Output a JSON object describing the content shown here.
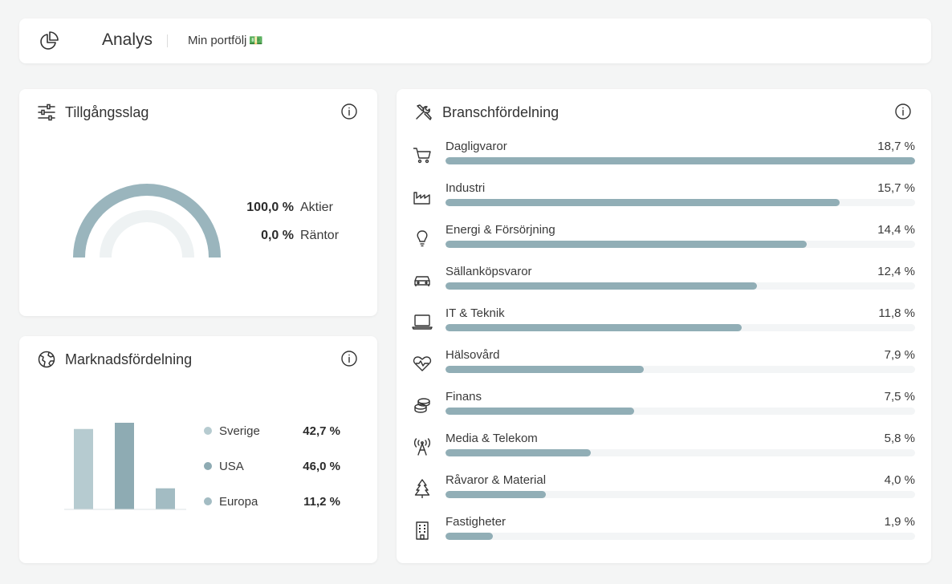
{
  "colors": {
    "accent": "#91aeb6",
    "bar_sverige": "#b6cbd0",
    "bar_usa": "#8eabb3",
    "bar_europa": "#a3bcc3",
    "gauge_bond": "#eef2f3"
  },
  "header": {
    "title": "Analys",
    "portfolio": "Min portfölj",
    "portfolio_emoji": "💵",
    "logo_icon": "pie-chart-icon"
  },
  "assets": {
    "title": "Tillgångsslag",
    "icon": "sliders-icon",
    "items": [
      {
        "value": "100,0 %",
        "label": "Aktier",
        "fraction": 1.0
      },
      {
        "value": "0,0 %",
        "label": "Räntor",
        "fraction": 0.0
      }
    ]
  },
  "market": {
    "title": "Marknadsfördelning",
    "icon": "globe-icon",
    "items": [
      {
        "label": "Sverige",
        "value": "42,7 %",
        "percent": 42.7
      },
      {
        "label": "USA",
        "value": "46,0 %",
        "percent": 46.0
      },
      {
        "label": "Europa",
        "value": "11,2 %",
        "percent": 11.2
      }
    ]
  },
  "sectors": {
    "title": "Branschfördelning",
    "icon": "tools-icon",
    "max_percent": 18.7,
    "items": [
      {
        "label": "Dagligvaror",
        "value": "18,7 %",
        "percent": 18.7,
        "icon": "cart-icon"
      },
      {
        "label": "Industri",
        "value": "15,7 %",
        "percent": 15.7,
        "icon": "factory-icon"
      },
      {
        "label": "Energi & Försörjning",
        "value": "14,4 %",
        "percent": 14.4,
        "icon": "lightbulb-icon"
      },
      {
        "label": "Sällanköpsvaror",
        "value": "12,4 %",
        "percent": 12.4,
        "icon": "car-icon"
      },
      {
        "label": "IT & Teknik",
        "value": "11,8 %",
        "percent": 11.8,
        "icon": "laptop-icon"
      },
      {
        "label": "Hälsovård",
        "value": "7,9 %",
        "percent": 7.9,
        "icon": "heart-pulse-icon"
      },
      {
        "label": "Finans",
        "value": "7,5 %",
        "percent": 7.5,
        "icon": "coins-icon"
      },
      {
        "label": "Media & Telekom",
        "value": "5,8 %",
        "percent": 5.8,
        "icon": "antenna-icon"
      },
      {
        "label": "Råvaror & Material",
        "value": "4,0 %",
        "percent": 4.0,
        "icon": "tree-icon"
      },
      {
        "label": "Fastigheter",
        "value": "1,9 %",
        "percent": 1.9,
        "icon": "building-icon"
      }
    ]
  }
}
